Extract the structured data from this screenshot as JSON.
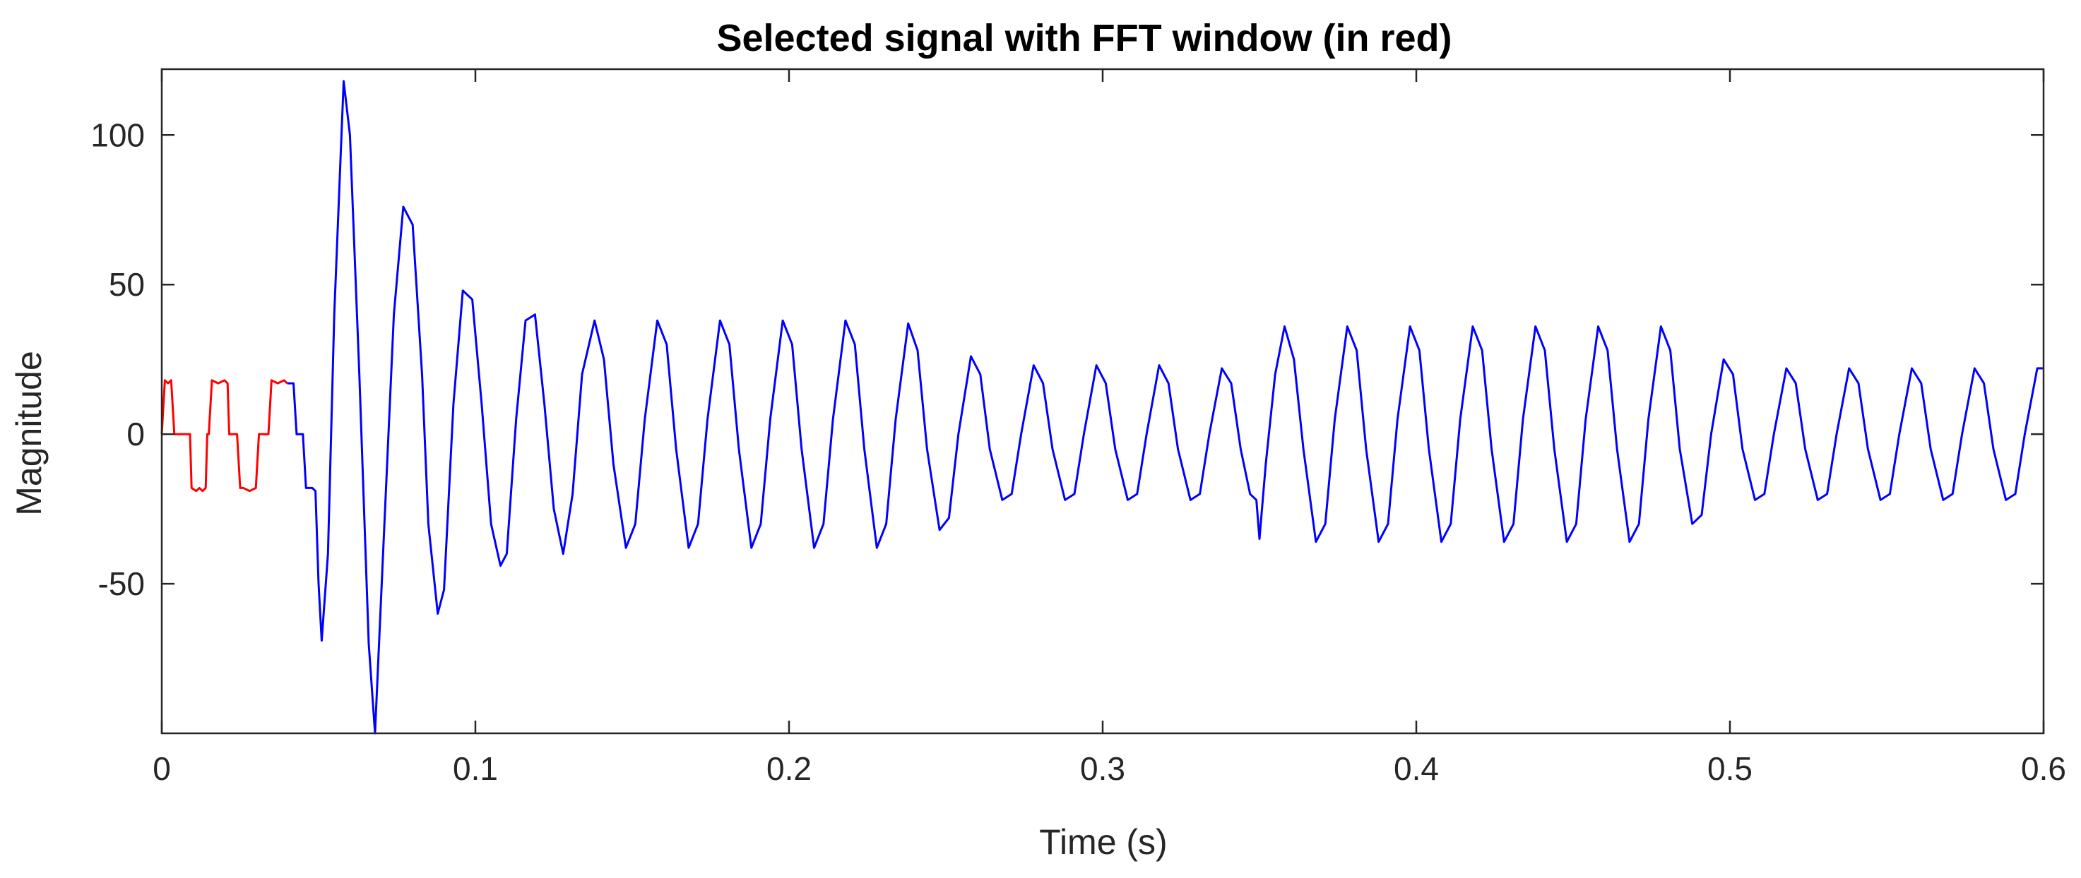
{
  "chart_data": {
    "type": "line",
    "title": "Selected signal with FFT window (in red)",
    "xlabel": "Time (s)",
    "ylabel": "Magnitude",
    "xlim": [
      0,
      0.6
    ],
    "ylim": [
      -100,
      122
    ],
    "xticks": [
      0,
      0.1,
      0.2,
      0.3,
      0.4,
      0.5,
      0.6
    ],
    "xtick_labels": [
      "0",
      "0.1",
      "0.2",
      "0.3",
      "0.4",
      "0.5",
      "0.6"
    ],
    "yticks": [
      -50,
      0,
      50,
      100
    ],
    "ytick_labels": [
      "-50",
      "0",
      "50",
      "100"
    ],
    "grid": false,
    "box": true,
    "series": [
      {
        "color": "#ff0000",
        "role": "fft-window",
        "points": [
          [
            0.0,
            0
          ],
          [
            0.001,
            18
          ],
          [
            0.002,
            17
          ],
          [
            0.003,
            18
          ],
          [
            0.004,
            0
          ],
          [
            0.005,
            0
          ],
          [
            0.007,
            0
          ],
          [
            0.008,
            0
          ],
          [
            0.009,
            0
          ],
          [
            0.0095,
            -18
          ],
          [
            0.011,
            -19
          ],
          [
            0.012,
            -18
          ],
          [
            0.013,
            -19
          ],
          [
            0.014,
            -18
          ],
          [
            0.0145,
            0
          ],
          [
            0.015,
            0
          ],
          [
            0.016,
            18
          ],
          [
            0.018,
            17
          ],
          [
            0.02,
            18
          ],
          [
            0.021,
            17
          ],
          [
            0.0215,
            0
          ],
          [
            0.023,
            0
          ],
          [
            0.024,
            0
          ],
          [
            0.025,
            -18
          ],
          [
            0.026,
            -18
          ],
          [
            0.028,
            -19
          ],
          [
            0.03,
            -18
          ],
          [
            0.031,
            0
          ],
          [
            0.032,
            0
          ],
          [
            0.034,
            0
          ],
          [
            0.035,
            18
          ],
          [
            0.037,
            17
          ],
          [
            0.039,
            18
          ],
          [
            0.04,
            17
          ]
        ]
      },
      {
        "color": "#0000ff",
        "role": "signal",
        "points": [
          [
            0.04,
            17
          ],
          [
            0.042,
            17
          ],
          [
            0.043,
            0
          ],
          [
            0.045,
            0
          ],
          [
            0.046,
            -18
          ],
          [
            0.048,
            -18
          ],
          [
            0.049,
            -19
          ],
          [
            0.05,
            -50
          ],
          [
            0.051,
            -69
          ],
          [
            0.053,
            -40
          ],
          [
            0.055,
            40
          ],
          [
            0.058,
            118
          ],
          [
            0.06,
            100
          ],
          [
            0.063,
            20
          ],
          [
            0.066,
            -70
          ],
          [
            0.068,
            -100
          ],
          [
            0.071,
            -30
          ],
          [
            0.074,
            40
          ],
          [
            0.077,
            76
          ],
          [
            0.08,
            70
          ],
          [
            0.083,
            20
          ],
          [
            0.085,
            -30
          ],
          [
            0.088,
            -60
          ],
          [
            0.09,
            -52
          ],
          [
            0.093,
            10
          ],
          [
            0.096,
            48
          ],
          [
            0.099,
            45
          ],
          [
            0.102,
            10
          ],
          [
            0.105,
            -30
          ],
          [
            0.108,
            -44
          ],
          [
            0.11,
            -40
          ],
          [
            0.113,
            5
          ],
          [
            0.116,
            38
          ],
          [
            0.119,
            40
          ],
          [
            0.122,
            10
          ],
          [
            0.125,
            -25
          ],
          [
            0.128,
            -40
          ],
          [
            0.131,
            -20
          ],
          [
            0.134,
            20
          ],
          [
            0.138,
            38
          ],
          [
            0.141,
            25
          ],
          [
            0.144,
            -10
          ],
          [
            0.148,
            -38
          ],
          [
            0.151,
            -30
          ],
          [
            0.154,
            5
          ],
          [
            0.158,
            38
          ],
          [
            0.161,
            30
          ],
          [
            0.164,
            -5
          ],
          [
            0.168,
            -38
          ],
          [
            0.171,
            -30
          ],
          [
            0.174,
            5
          ],
          [
            0.178,
            38
          ],
          [
            0.181,
            30
          ],
          [
            0.184,
            -5
          ],
          [
            0.188,
            -38
          ],
          [
            0.191,
            -30
          ],
          [
            0.194,
            5
          ],
          [
            0.198,
            38
          ],
          [
            0.201,
            30
          ],
          [
            0.204,
            -5
          ],
          [
            0.208,
            -38
          ],
          [
            0.211,
            -30
          ],
          [
            0.214,
            5
          ],
          [
            0.218,
            38
          ],
          [
            0.221,
            30
          ],
          [
            0.224,
            -5
          ],
          [
            0.228,
            -38
          ],
          [
            0.231,
            -30
          ],
          [
            0.234,
            5
          ],
          [
            0.238,
            37
          ],
          [
            0.241,
            28
          ],
          [
            0.244,
            -5
          ],
          [
            0.248,
            -32
          ],
          [
            0.251,
            -28
          ],
          [
            0.254,
            0
          ],
          [
            0.258,
            26
          ],
          [
            0.261,
            20
          ],
          [
            0.264,
            -5
          ],
          [
            0.268,
            -22
          ],
          [
            0.271,
            -20
          ],
          [
            0.274,
            0
          ],
          [
            0.278,
            23
          ],
          [
            0.281,
            17
          ],
          [
            0.284,
            -5
          ],
          [
            0.288,
            -22
          ],
          [
            0.291,
            -20
          ],
          [
            0.294,
            0
          ],
          [
            0.298,
            23
          ],
          [
            0.301,
            17
          ],
          [
            0.304,
            -5
          ],
          [
            0.308,
            -22
          ],
          [
            0.311,
            -20
          ],
          [
            0.314,
            0
          ],
          [
            0.318,
            23
          ],
          [
            0.321,
            17
          ],
          [
            0.324,
            -5
          ],
          [
            0.328,
            -22
          ],
          [
            0.331,
            -20
          ],
          [
            0.334,
            0
          ],
          [
            0.338,
            22
          ],
          [
            0.341,
            17
          ],
          [
            0.344,
            -5
          ],
          [
            0.347,
            -20
          ],
          [
            0.349,
            -22
          ],
          [
            0.35,
            -35
          ],
          [
            0.352,
            -10
          ],
          [
            0.355,
            20
          ],
          [
            0.358,
            36
          ],
          [
            0.361,
            25
          ],
          [
            0.364,
            -5
          ],
          [
            0.368,
            -36
          ],
          [
            0.371,
            -30
          ],
          [
            0.374,
            5
          ],
          [
            0.378,
            36
          ],
          [
            0.381,
            28
          ],
          [
            0.384,
            -5
          ],
          [
            0.388,
            -36
          ],
          [
            0.391,
            -30
          ],
          [
            0.394,
            5
          ],
          [
            0.398,
            36
          ],
          [
            0.401,
            28
          ],
          [
            0.404,
            -5
          ],
          [
            0.408,
            -36
          ],
          [
            0.411,
            -30
          ],
          [
            0.414,
            5
          ],
          [
            0.418,
            36
          ],
          [
            0.421,
            28
          ],
          [
            0.424,
            -5
          ],
          [
            0.428,
            -36
          ],
          [
            0.431,
            -30
          ],
          [
            0.434,
            5
          ],
          [
            0.438,
            36
          ],
          [
            0.441,
            28
          ],
          [
            0.444,
            -5
          ],
          [
            0.448,
            -36
          ],
          [
            0.451,
            -30
          ],
          [
            0.454,
            5
          ],
          [
            0.458,
            36
          ],
          [
            0.461,
            28
          ],
          [
            0.464,
            -5
          ],
          [
            0.468,
            -36
          ],
          [
            0.471,
            -30
          ],
          [
            0.474,
            5
          ],
          [
            0.478,
            36
          ],
          [
            0.481,
            28
          ],
          [
            0.484,
            -5
          ],
          [
            0.488,
            -30
          ],
          [
            0.491,
            -27
          ],
          [
            0.494,
            0
          ],
          [
            0.498,
            25
          ],
          [
            0.501,
            20
          ],
          [
            0.504,
            -5
          ],
          [
            0.508,
            -22
          ],
          [
            0.511,
            -20
          ],
          [
            0.514,
            0
          ],
          [
            0.518,
            22
          ],
          [
            0.521,
            17
          ],
          [
            0.524,
            -5
          ],
          [
            0.528,
            -22
          ],
          [
            0.531,
            -20
          ],
          [
            0.534,
            0
          ],
          [
            0.538,
            22
          ],
          [
            0.541,
            17
          ],
          [
            0.544,
            -5
          ],
          [
            0.548,
            -22
          ],
          [
            0.551,
            -20
          ],
          [
            0.554,
            0
          ],
          [
            0.558,
            22
          ],
          [
            0.561,
            17
          ],
          [
            0.564,
            -5
          ],
          [
            0.568,
            -22
          ],
          [
            0.571,
            -20
          ],
          [
            0.574,
            0
          ],
          [
            0.578,
            22
          ],
          [
            0.581,
            17
          ],
          [
            0.584,
            -5
          ],
          [
            0.588,
            -22
          ],
          [
            0.591,
            -20
          ],
          [
            0.594,
            0
          ],
          [
            0.598,
            22
          ],
          [
            0.6,
            22
          ]
        ]
      }
    ]
  }
}
